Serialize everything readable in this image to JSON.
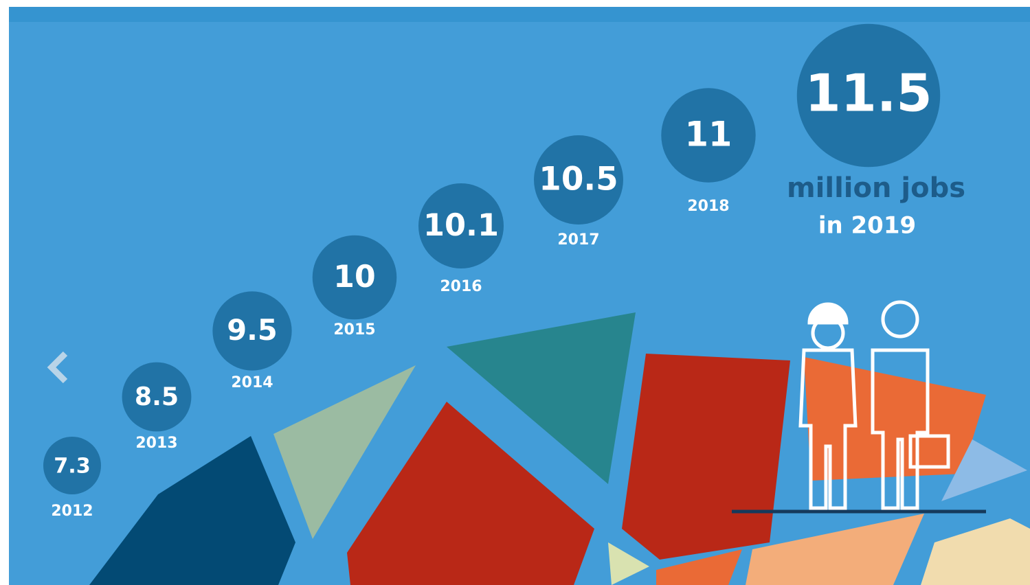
{
  "chart_data": {
    "type": "bubble",
    "categories": [
      "2012",
      "2013",
      "2014",
      "2015",
      "2016",
      "2017",
      "2018",
      null
    ],
    "values": [
      7.3,
      8.5,
      9.5,
      10,
      10.1,
      10.5,
      11,
      11.5
    ],
    "color": "#2173a6",
    "annotations": [
      "million jobs",
      "in 2019"
    ]
  }
}
